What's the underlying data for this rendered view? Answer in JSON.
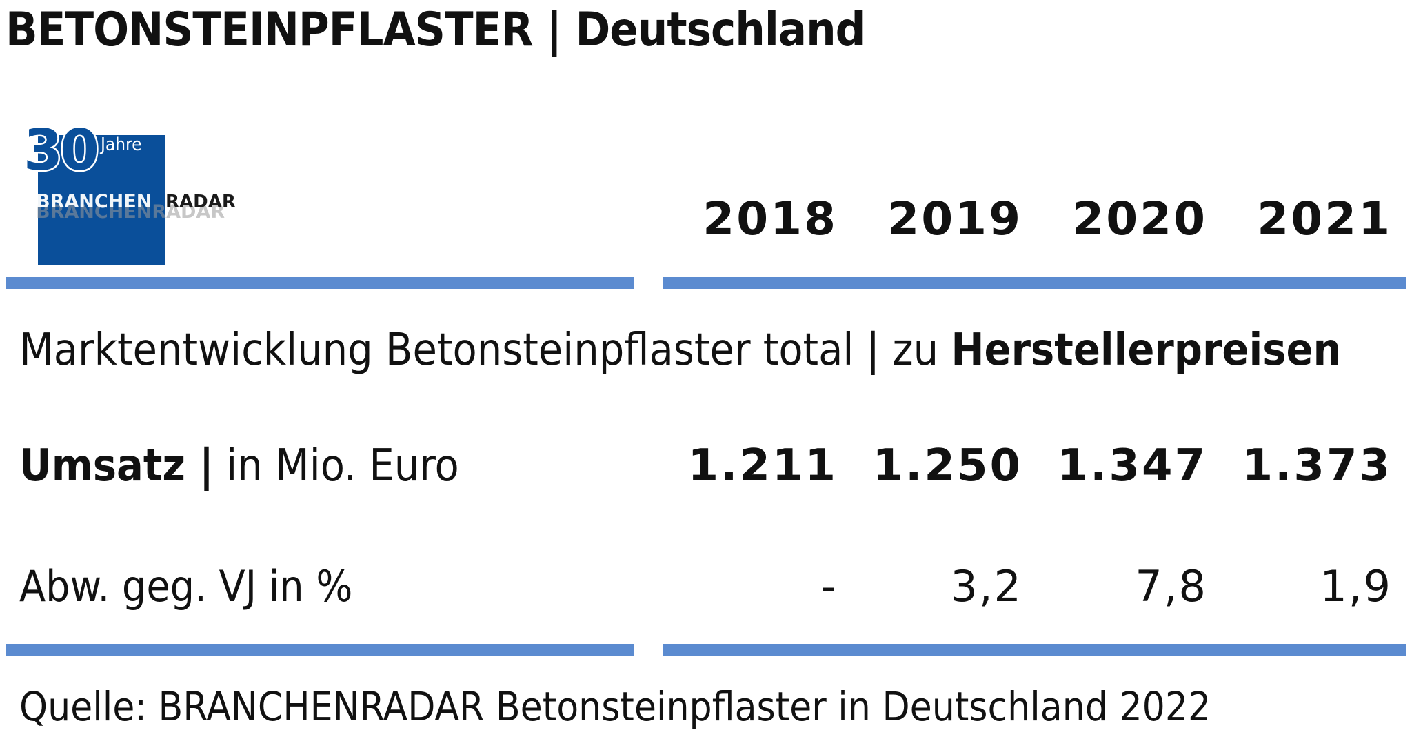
{
  "title": "BETONSTEINPFLASTER | Deutschland",
  "logo": {
    "number": "30",
    "sub": "Jahre",
    "brand_part1": "BRANCHEN",
    "brand_part2": "RADAR",
    "brand_ghost": "BRANCHENRADAR",
    "colors": {
      "blue": "#0a4f9a",
      "white": "#ffffff",
      "dark": "#1a1a1a"
    }
  },
  "accent_color": "#5b8bd0",
  "subtitle_plain": "Marktentwicklung Betonsteinpflaster total | zu ",
  "subtitle_bold": "Herstellerpreisen",
  "source": "Quelle: BRANCHENRADAR Betonsteinpflaster in Deutschland 2022",
  "chart_data": {
    "type": "table",
    "columns": [
      "2018",
      "2019",
      "2020",
      "2021"
    ],
    "rows": [
      {
        "label_bold": "Umsatz |",
        "label_rest": " in Mio. Euro",
        "values": [
          "1.211",
          "1.250",
          "1.347",
          "1.373"
        ]
      },
      {
        "label": "Abw. geg. VJ in %",
        "values": [
          "-",
          "3,2",
          "7,8",
          "1,9"
        ]
      }
    ]
  }
}
